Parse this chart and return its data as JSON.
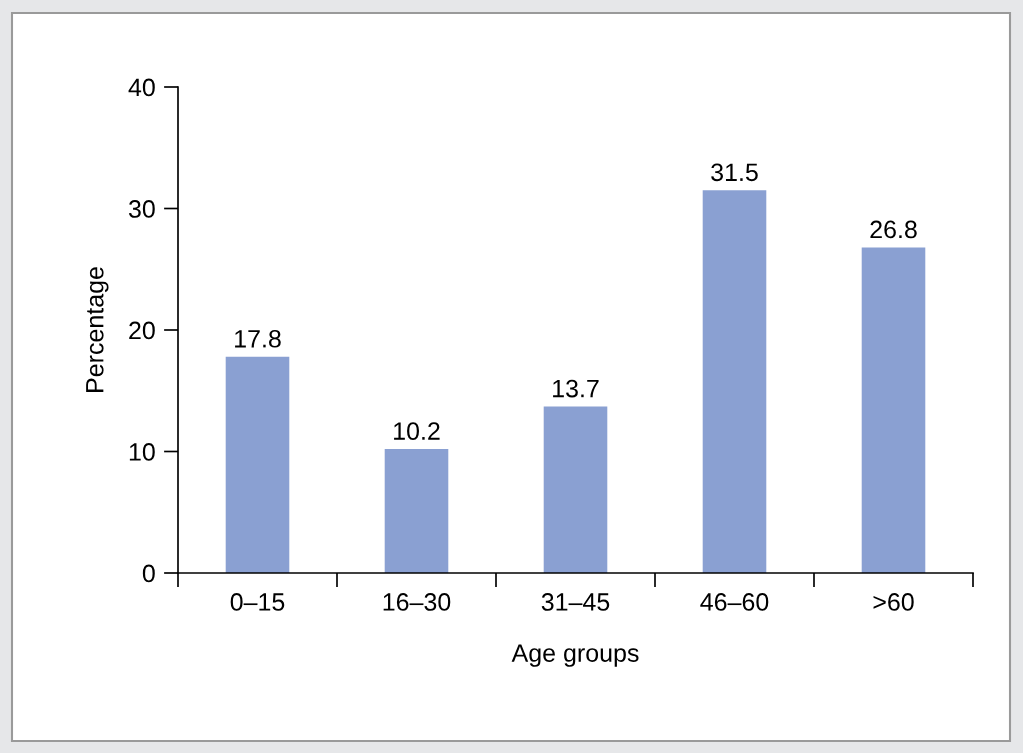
{
  "chart_data": {
    "type": "bar",
    "xlabel": "Age groups",
    "ylabel": "Percentage",
    "categories": [
      "0–15",
      "16–30",
      "31–45",
      "46–60",
      ">60"
    ],
    "values": [
      17.8,
      10.2,
      13.7,
      31.5,
      26.8
    ],
    "color": "#8aa0d2",
    "ylim": [
      0,
      40
    ],
    "yticks": [
      0,
      10,
      20,
      30,
      40
    ],
    "data_labels": true,
    "grid": false
  }
}
